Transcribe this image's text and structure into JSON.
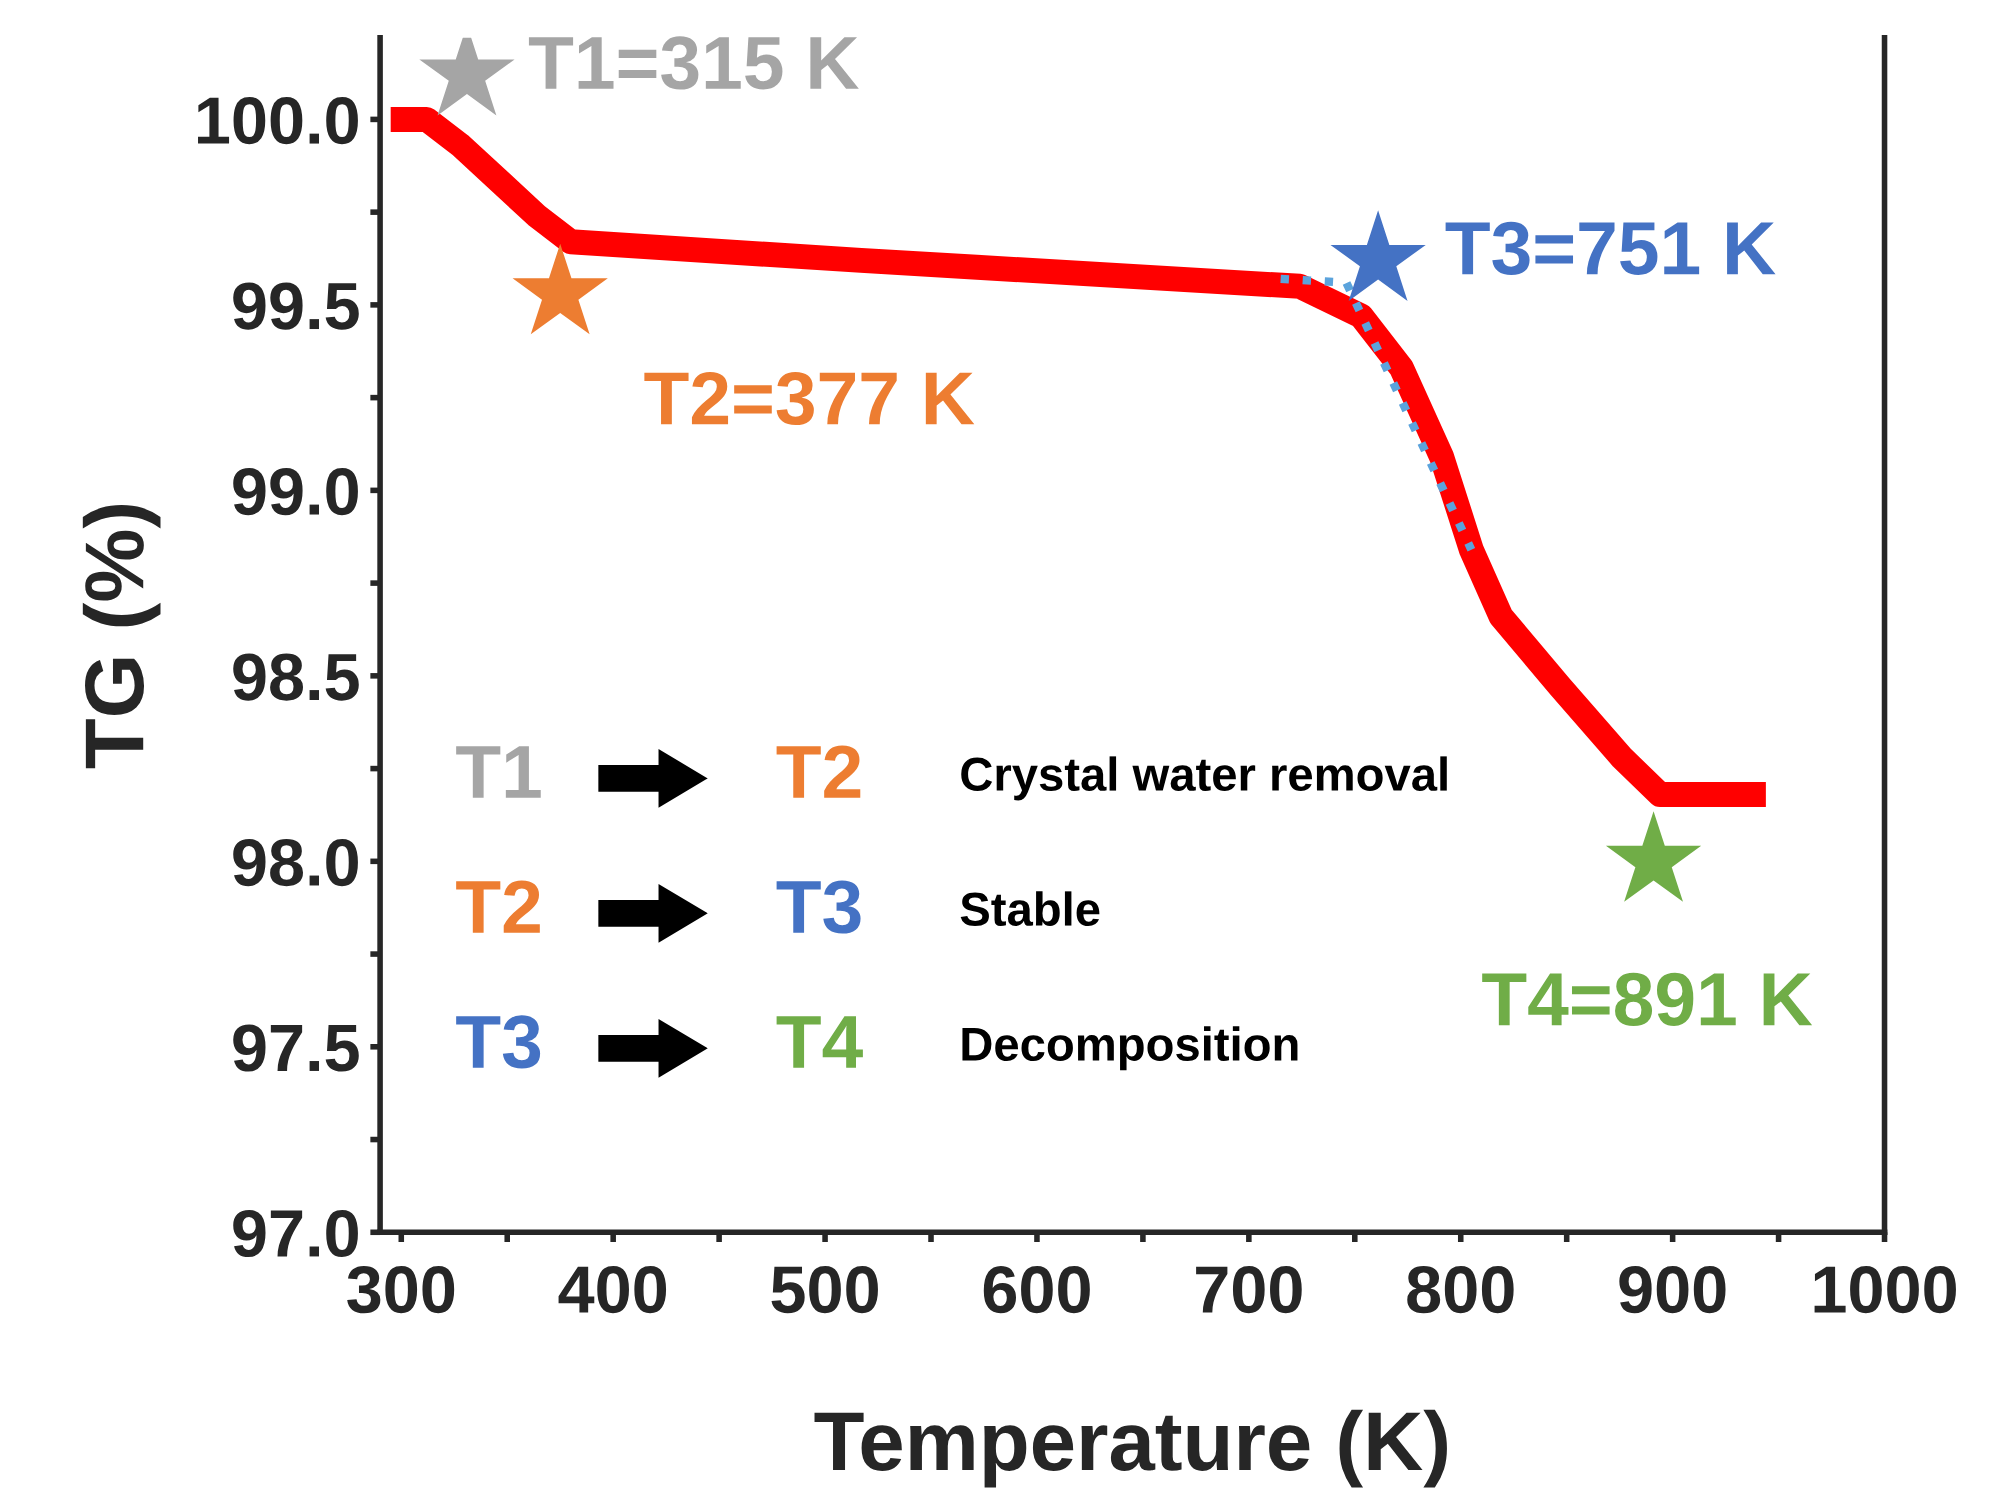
{
  "chart_data": {
    "type": "line",
    "xlabel": "Temperature (K)",
    "ylabel": "TG (%)",
    "xlim": [
      290,
      1000
    ],
    "ylim": [
      97.0,
      100.22
    ],
    "xticks": [
      300,
      {
        "value": 350,
        "label": null
      },
      400,
      {
        "value": 450,
        "label": null
      },
      500,
      {
        "value": 550,
        "label": null
      },
      600,
      {
        "value": 650,
        "label": null
      },
      700,
      {
        "value": 750,
        "label": null
      },
      800,
      {
        "value": 850,
        "label": null
      },
      900,
      {
        "value": 950,
        "label": null
      },
      1000
    ],
    "yticks": [
      {
        "value": 97.0,
        "label": "97.0"
      },
      {
        "value": 97.25,
        "label": null
      },
      {
        "value": 97.5,
        "label": "97.5"
      },
      {
        "value": 97.75,
        "label": null
      },
      {
        "value": 98.0,
        "label": "98.0"
      },
      {
        "value": 98.25,
        "label": null
      },
      {
        "value": 98.5,
        "label": "98.5"
      },
      {
        "value": 98.75,
        "label": null
      },
      {
        "value": 99.0,
        "label": "99.0"
      },
      {
        "value": 99.25,
        "label": null
      },
      {
        "value": 99.5,
        "label": "99.5"
      },
      {
        "value": 99.75,
        "label": null
      },
      {
        "value": 100.0,
        "label": "100.0"
      }
    ],
    "grid": false,
    "legend": false,
    "series": [
      {
        "color": "#ff0000",
        "line_style": "solid",
        "x": [
          295,
          312,
          328,
          347,
          364,
          380,
          517,
          724,
          753,
          772,
          791,
          805,
          819,
          847,
          876,
          894,
          944
        ],
        "values": [
          100.0,
          100.0,
          99.93,
          99.83,
          99.74,
          99.67,
          99.62,
          99.55,
          99.47,
          99.33,
          99.09,
          98.84,
          98.66,
          98.47,
          98.28,
          98.18,
          98.18
        ]
      },
      {
        "color": "#5ba3dc",
        "line_style": "dotted",
        "x": [
          715,
          746,
          805
        ],
        "values": [
          99.57,
          99.56,
          98.84
        ]
      },
      {
        "type": "scatter",
        "marker": "star",
        "name": "T1=315 K",
        "color": "#a5a5a5",
        "x": [
          331
        ],
        "values": [
          100.12
        ]
      },
      {
        "type": "scatter",
        "marker": "star",
        "name": "T2=377 K",
        "color": "#ed7d31",
        "x": [
          375
        ],
        "values": [
          99.53
        ]
      },
      {
        "type": "scatter",
        "marker": "star",
        "name": "T3=751 K",
        "color": "#4472c4",
        "x": [
          761
        ],
        "values": [
          99.62
        ]
      },
      {
        "type": "scatter",
        "marker": "star",
        "name": "T4=891 K",
        "color": "#70ad47",
        "x": [
          891
        ],
        "values": [
          98.0
        ]
      }
    ],
    "annotations": [
      "T1",
      "T2",
      "Crystal water removal",
      "T2",
      "T3",
      "Stable",
      "T3",
      "T4",
      "Decomposition"
    ]
  }
}
